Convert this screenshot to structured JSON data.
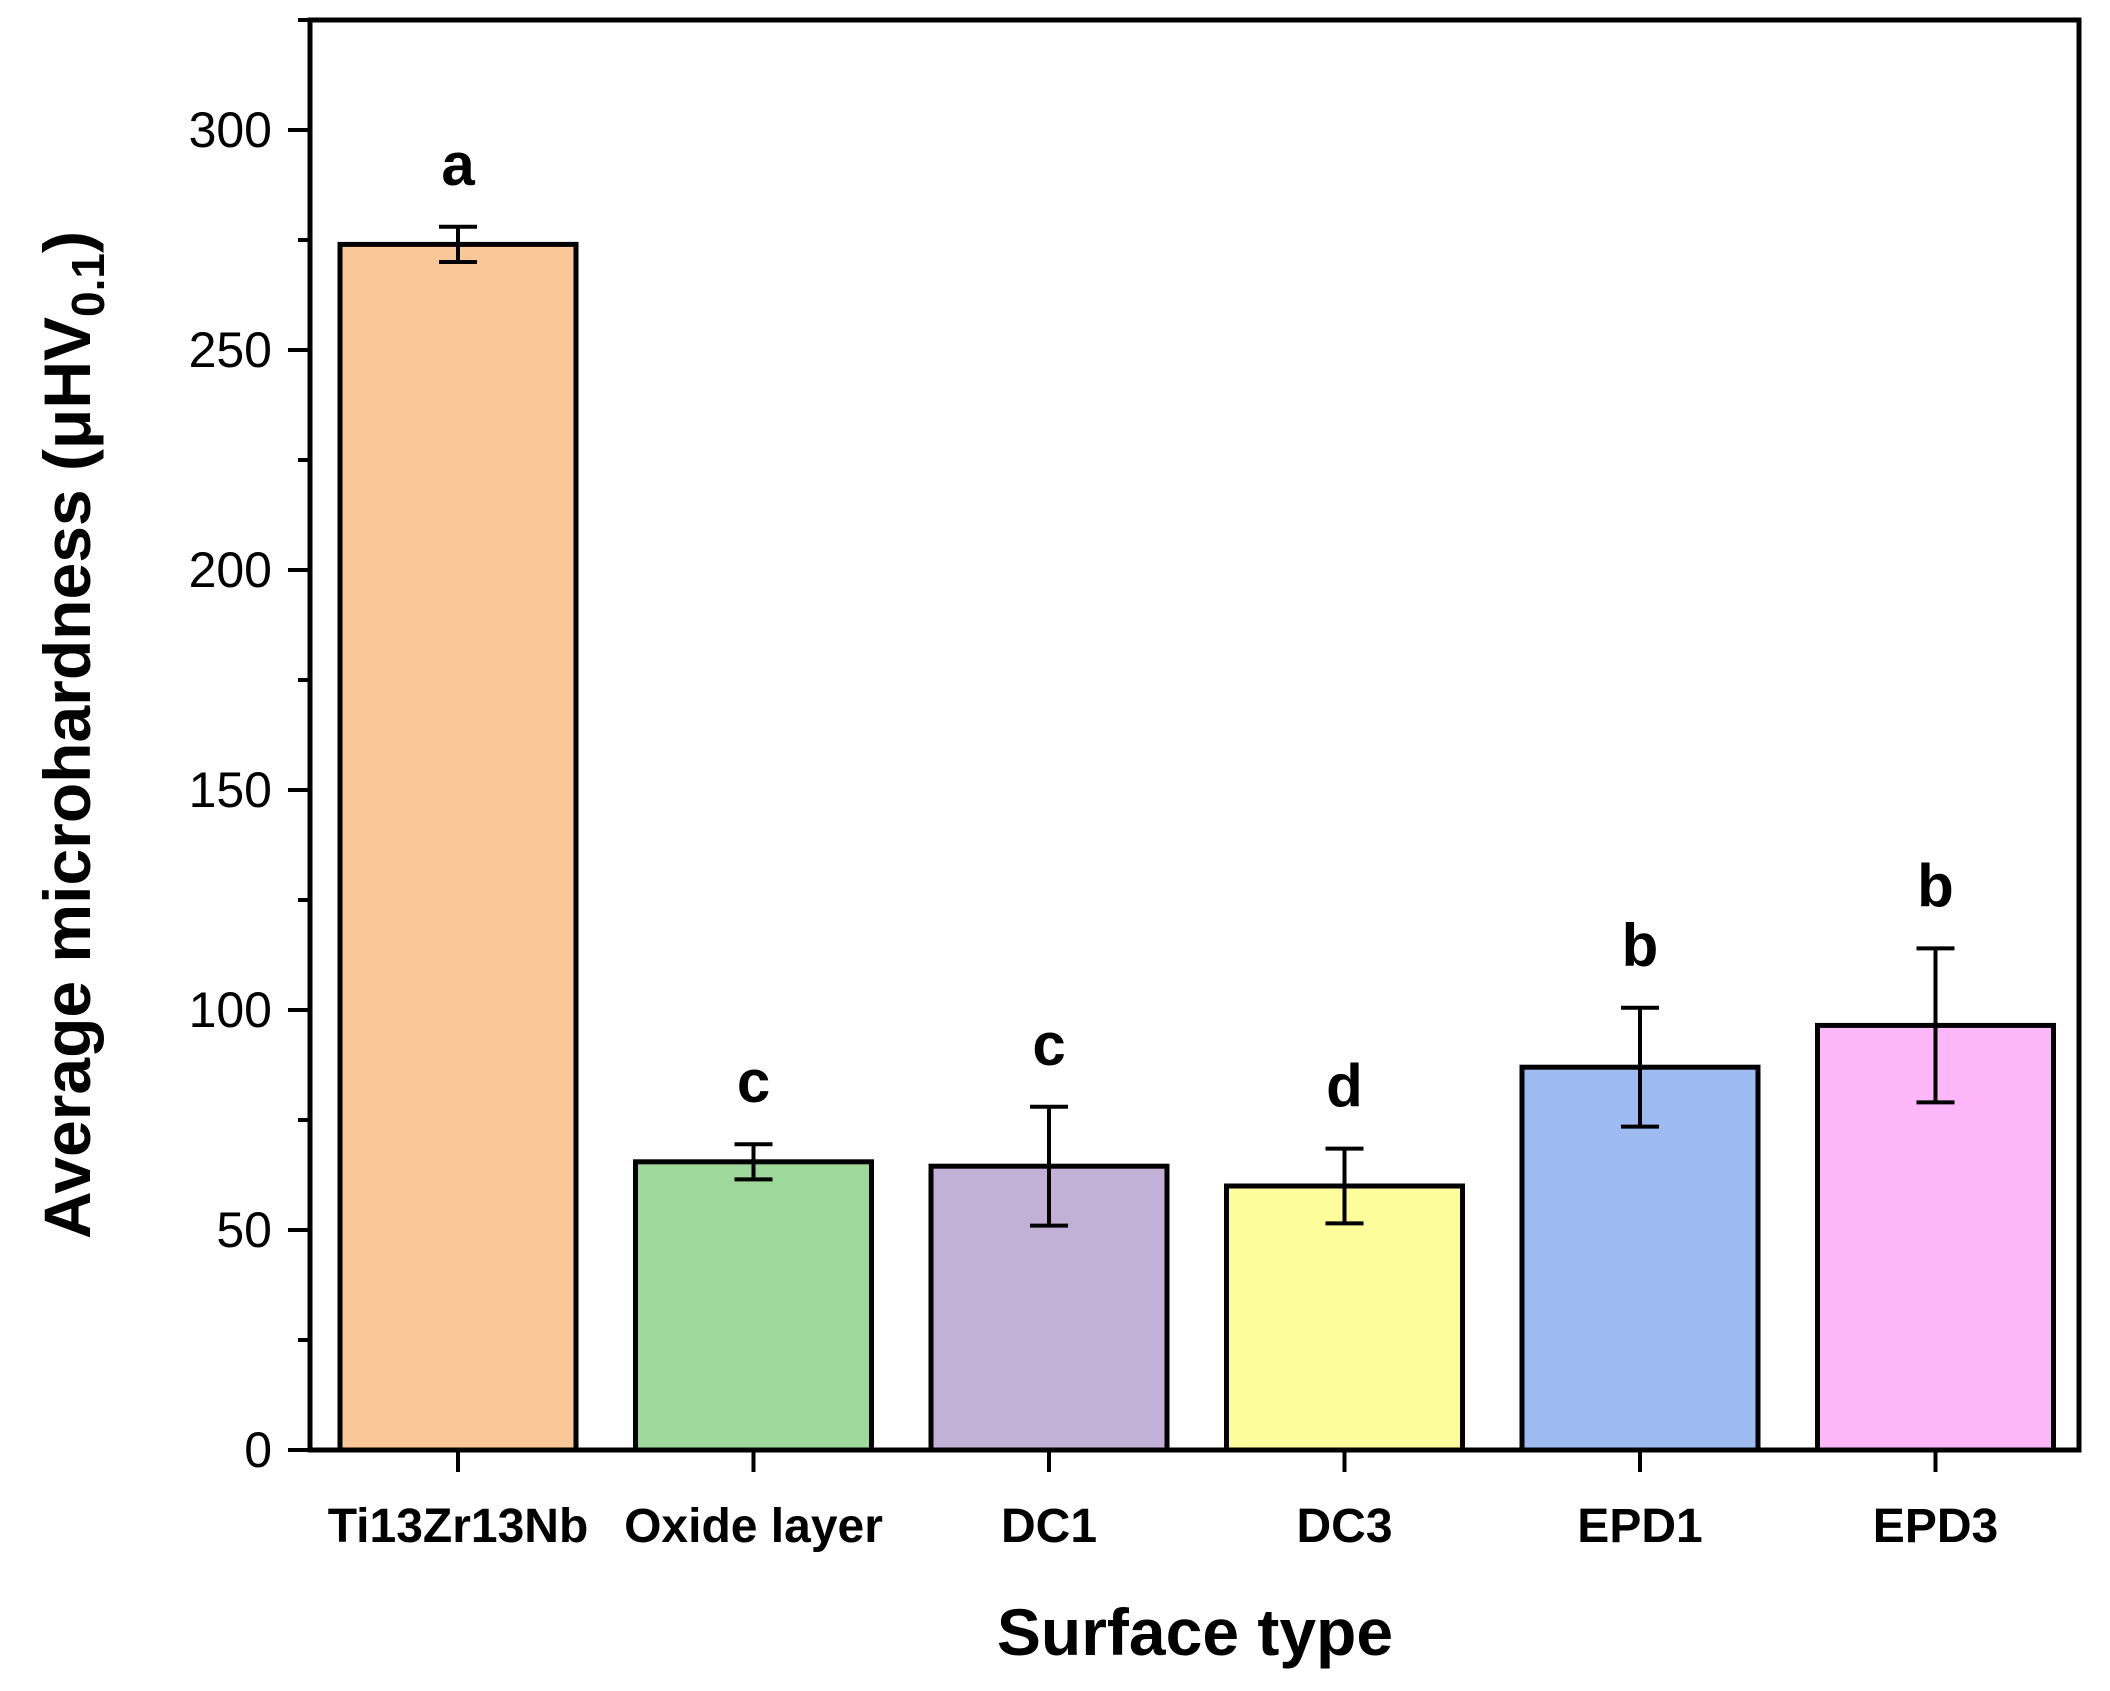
{
  "chart_data": {
    "type": "bar",
    "title": "",
    "xlabel": "Surface type",
    "ylabel": {
      "main": "Average microhardness (μHV",
      "sub": "0.1",
      "close": ")"
    },
    "ylim": [
      0,
      325
    ],
    "yticks": [
      0,
      50,
      100,
      150,
      200,
      250,
      300
    ],
    "categories": [
      "Ti13Zr13Nb",
      "Oxide layer",
      "DC1",
      "DC3",
      "EPD1",
      "EPD3"
    ],
    "values": [
      274,
      65.5,
      64.5,
      60,
      87,
      96.5
    ],
    "errors": [
      4,
      4,
      13.5,
      8.5,
      13.5,
      17.5
    ],
    "significance_labels": [
      "a",
      "c",
      "c",
      "d",
      "b",
      "b"
    ],
    "colors": [
      "#fac896",
      "#9ed99b",
      "#c1b1d6",
      "#fefd9c",
      "#9ebbf1",
      "#fdb6f7"
    ]
  }
}
